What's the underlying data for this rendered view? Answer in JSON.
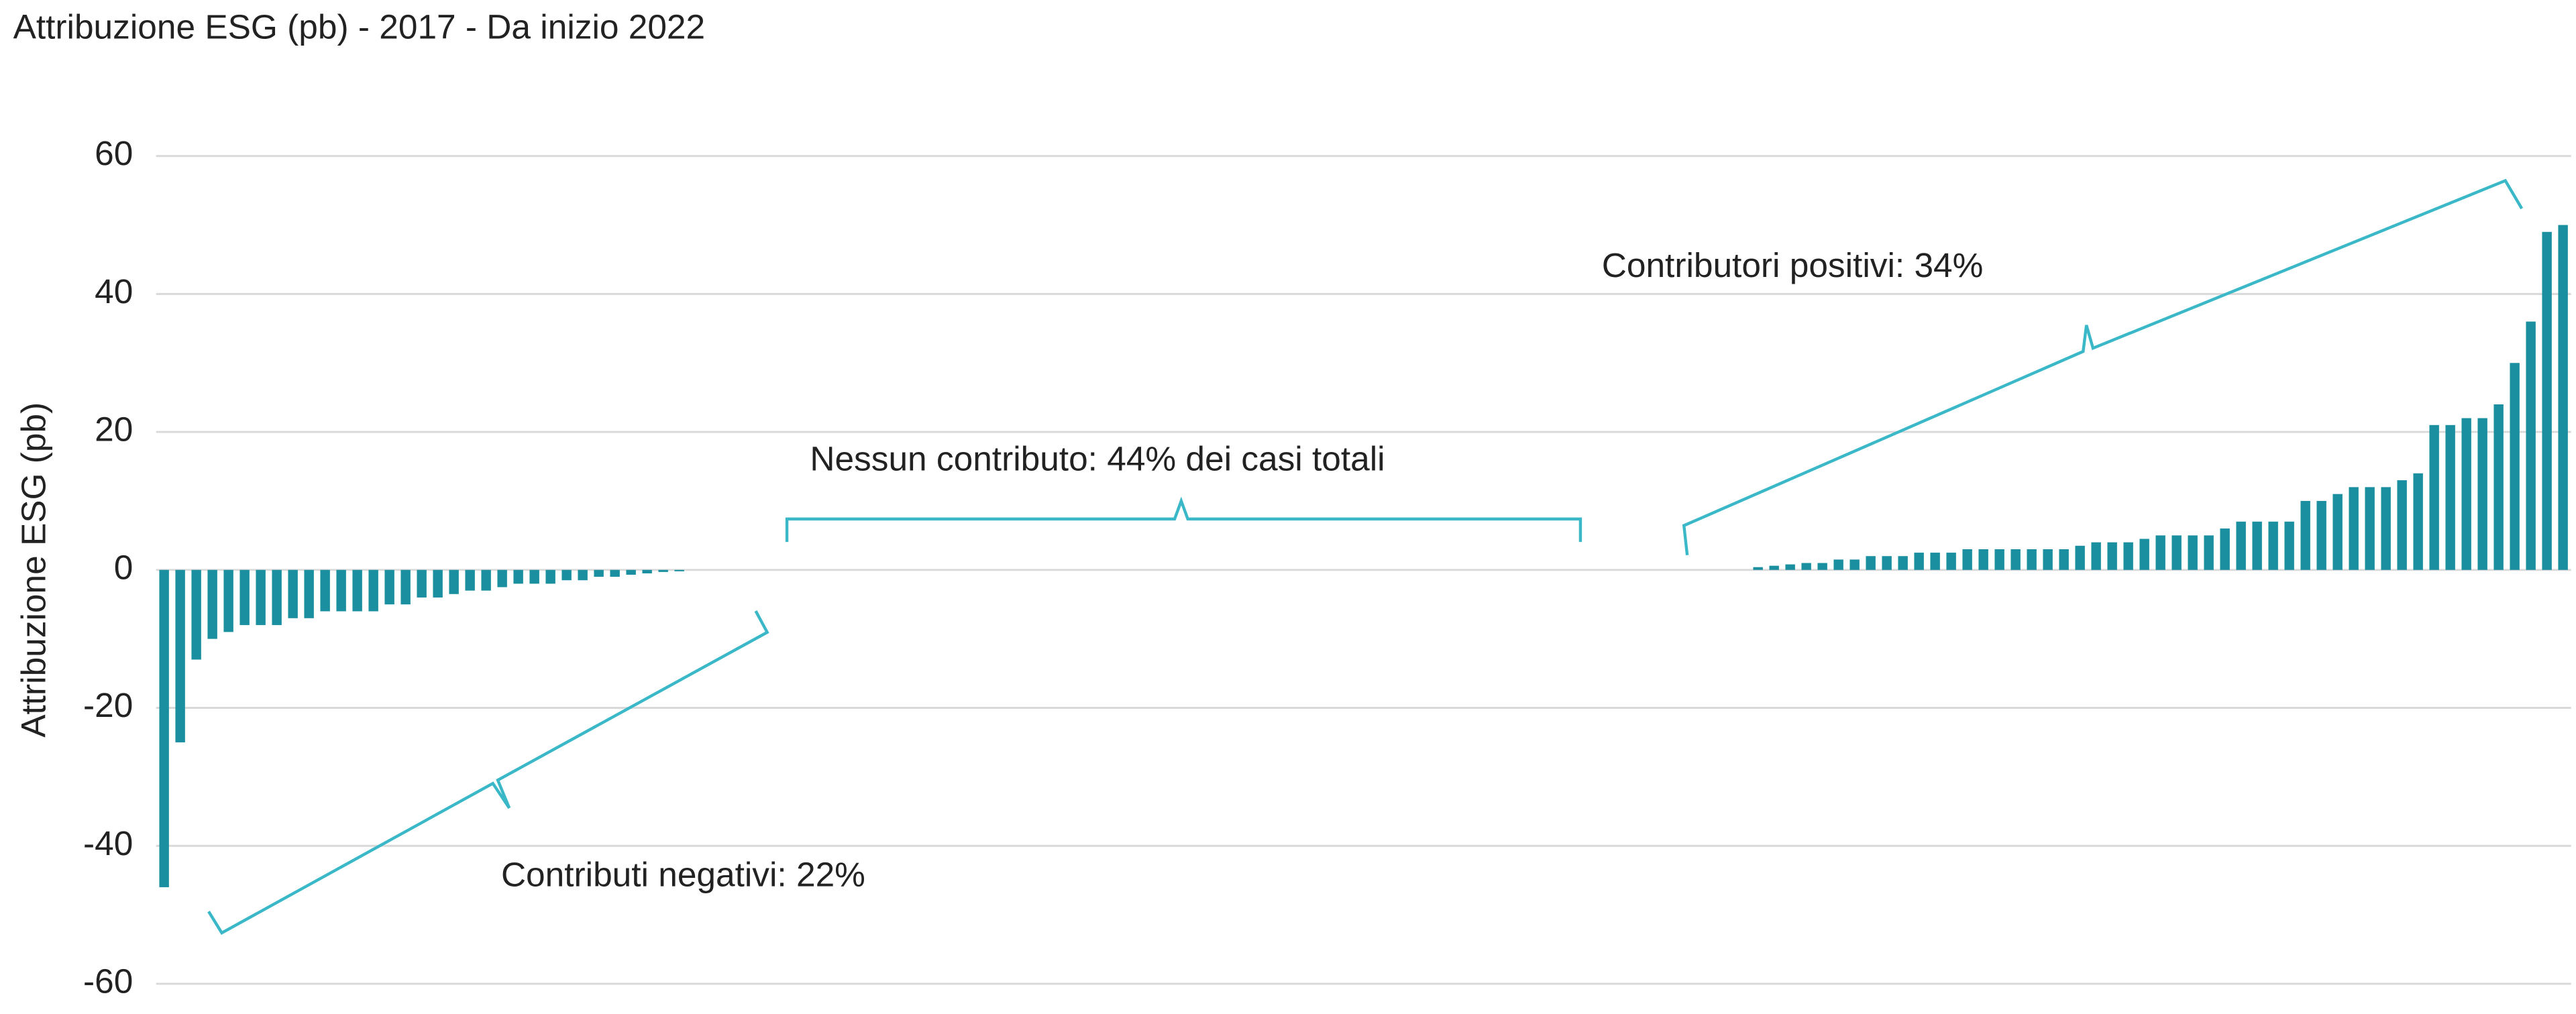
{
  "chart_data": {
    "type": "bar",
    "title": "Attribuzione ESG (pb) - 2017 - Da inizio 2022",
    "y_label": "Attribuzione ESG (pb)",
    "annotations": [
      "Contributi negativi: 22%",
      "Nessun contributo: 44% dei casi totali",
      "Contributori positivi: 34%"
    ],
    "color": "#1a8fa0",
    "bracket_color": "#3bb8c8",
    "categories": [
      null,
      null,
      null,
      null,
      null,
      null,
      null,
      null,
      null,
      null,
      null,
      null,
      null,
      null,
      null,
      null,
      null,
      null,
      null,
      null,
      null,
      null,
      null,
      null,
      null,
      null,
      null,
      null,
      null,
      null,
      null,
      null,
      null,
      null,
      null,
      null,
      null,
      null,
      null,
      null,
      null,
      null,
      null,
      null,
      null,
      null,
      null,
      null,
      null,
      null,
      null,
      null,
      null,
      null,
      null,
      null,
      null,
      null,
      null,
      null,
      null,
      null,
      null,
      null,
      null,
      null,
      null,
      null,
      null,
      null,
      null,
      null,
      null,
      null,
      null,
      null,
      null,
      null,
      null,
      null,
      null,
      null,
      null,
      null,
      null,
      null,
      null,
      null,
      null,
      null,
      null,
      null,
      null,
      null,
      null,
      null,
      null,
      null,
      null,
      null,
      null,
      null,
      null,
      null,
      null,
      null,
      null,
      null,
      null,
      null,
      null,
      null,
      null,
      null,
      null,
      null,
      null,
      null,
      null,
      null,
      null,
      null,
      null,
      null,
      null,
      null,
      null,
      null,
      null,
      null,
      null,
      null,
      null,
      null,
      null,
      null,
      null,
      null,
      null,
      null,
      null,
      null,
      null,
      null,
      null,
      null,
      null,
      null,
      null,
      null
    ],
    "values": [
      -46,
      -25,
      -13,
      -10,
      -9,
      -8,
      -8,
      -8,
      -7,
      -7,
      -6,
      -6,
      -6,
      -6,
      -5,
      -5,
      -4,
      -4,
      -3.5,
      -3,
      -3,
      -2.5,
      -2,
      -2,
      -2,
      -1.5,
      -1.5,
      -1,
      -1,
      -0.7,
      -0.5,
      -0.3,
      -0.2,
      0,
      0,
      0,
      0,
      0,
      0,
      0,
      0,
      0,
      0,
      0,
      0,
      0,
      0,
      0,
      0,
      0,
      0,
      0,
      0,
      0,
      0,
      0,
      0,
      0,
      0,
      0,
      0,
      0,
      0,
      0,
      0,
      0,
      0,
      0,
      0,
      0,
      0,
      0,
      0,
      0,
      0,
      0,
      0,
      0,
      0,
      0,
      0,
      0,
      0,
      0,
      0,
      0,
      0,
      0,
      0,
      0,
      0,
      0,
      0,
      0,
      0,
      0,
      0,
      0,
      0,
      0.4,
      0.6,
      0.8,
      1,
      1,
      1.5,
      1.5,
      2,
      2,
      2,
      2.5,
      2.5,
      2.5,
      3,
      3,
      3,
      3,
      3,
      3,
      3,
      3.5,
      4,
      4,
      4,
      4.5,
      5,
      5,
      5,
      5,
      6,
      7,
      7,
      7,
      7,
      10,
      10,
      11,
      12,
      12,
      12,
      13,
      14,
      21,
      21,
      22,
      22,
      24,
      30,
      36,
      49,
      50
    ],
    "ylim": [
      -60,
      60
    ],
    "yticks": [
      -60,
      -40,
      -20,
      0,
      20,
      40,
      60
    ],
    "grid": true
  }
}
